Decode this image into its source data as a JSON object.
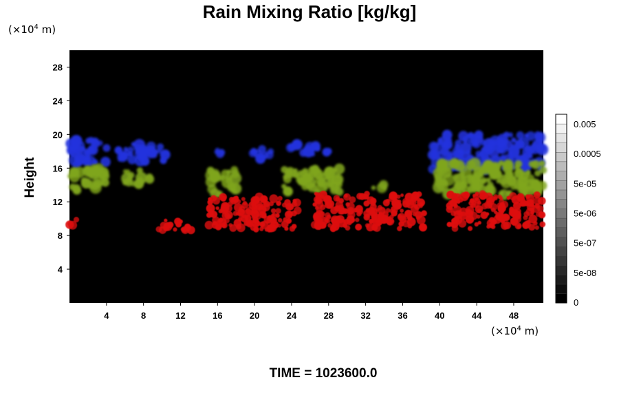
{
  "chart_data": {
    "type": "heatmap",
    "title": "Rain Mixing Ratio [kg/kg]",
    "ylabel": "Height",
    "y_unit": {
      "prefix": "(×10",
      "exp": "4",
      "suffix": " m)"
    },
    "x_unit": {
      "prefix": "(×10",
      "exp": "4",
      "suffix": " m)"
    },
    "xlim": [
      0,
      51.2
    ],
    "ylim": [
      0,
      30
    ],
    "x_ticks": [
      4,
      8,
      12,
      16,
      20,
      24,
      28,
      32,
      36,
      40,
      44,
      48
    ],
    "y_ticks": [
      4,
      8,
      12,
      16,
      20,
      24,
      28
    ],
    "background": "#000000",
    "colorbar": {
      "labels": [
        "0.005",
        "0.0005",
        "5e-05",
        "5e-06",
        "5e-07",
        "5e-08",
        "0"
      ],
      "levels": 20,
      "colors": [
        "#000000",
        "#ffffff"
      ]
    },
    "field_layers": [
      {
        "color": "#2233dd",
        "y_range": [
          15.6,
          20.2
        ],
        "regions": [
          {
            "x": [
              0,
              4.2
            ],
            "y": [
              16.3,
              19.4
            ]
          },
          {
            "x": [
              5,
              10.8
            ],
            "y": [
              16.8,
              18.9
            ]
          },
          {
            "x": [
              15.2,
              16.5
            ],
            "y": [
              17.4,
              18.6
            ]
          },
          {
            "x": [
              19.8,
              22
            ],
            "y": [
              17,
              18.5
            ]
          },
          {
            "x": [
              23.8,
              28.5
            ],
            "y": [
              17.6,
              18.8
            ]
          },
          {
            "x": [
              39.2,
              51.2
            ],
            "y": [
              15.8,
              20
            ]
          }
        ]
      },
      {
        "color": "#7fa51c",
        "y_range": [
          12.8,
          16.6
        ],
        "regions": [
          {
            "x": [
              0,
              4
            ],
            "y": [
              13.2,
              16
            ]
          },
          {
            "x": [
              6,
              8.7
            ],
            "y": [
              14,
              16
            ]
          },
          {
            "x": [
              15.2,
              18
            ],
            "y": [
              12.8,
              15.8
            ]
          },
          {
            "x": [
              22.8,
              29.2
            ],
            "y": [
              13,
              16
            ]
          },
          {
            "x": [
              32.5,
              34.4
            ],
            "y": [
              13.5,
              14.3
            ]
          },
          {
            "x": [
              39.8,
              51.2
            ],
            "y": [
              12.8,
              16.6
            ]
          }
        ]
      },
      {
        "color": "#dd1111",
        "y_range": [
          8.6,
          13
        ],
        "regions": [
          {
            "x": [
              0,
              0.8
            ],
            "y": [
              9.2,
              10.2
            ]
          },
          {
            "x": [
              9.6,
              14
            ],
            "y": [
              8.6,
              9.8
            ]
          },
          {
            "x": [
              15,
              24.8
            ],
            "y": [
              8.7,
              12.6
            ]
          },
          {
            "x": [
              26.4,
              38.4
            ],
            "y": [
              8.8,
              13
            ]
          },
          {
            "x": [
              41,
              51.2
            ],
            "y": [
              8.8,
              13
            ]
          }
        ]
      }
    ]
  },
  "footer": {
    "time_label": "TIME = 1023600.0"
  }
}
